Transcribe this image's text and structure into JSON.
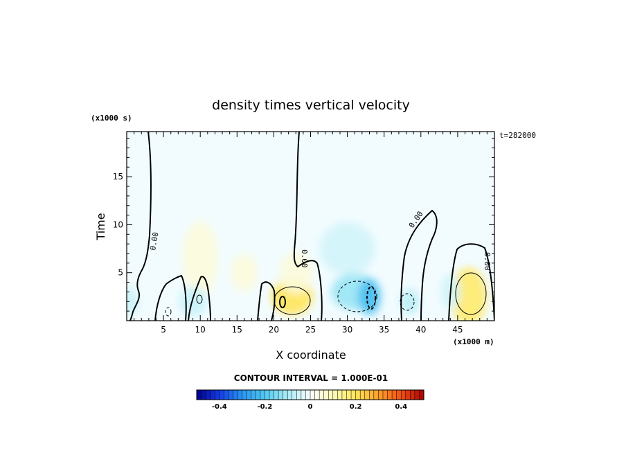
{
  "chart_data": {
    "type": "heatmap",
    "title": "density times vertical velocity",
    "xlabel": "X coordinate",
    "ylabel": "Time",
    "x_unit_label": "(x1000 m)",
    "y_unit_label": "(x1000 s)",
    "time_label": "t=282000",
    "contour_interval_label": "CONTOUR INTERVAL = 1.000E-01",
    "contour_label": "0.00",
    "xlim": [
      0,
      50
    ],
    "ylim": [
      0,
      19.7
    ],
    "x_ticks": [
      5,
      10,
      15,
      20,
      25,
      30,
      35,
      40,
      45
    ],
    "x_tick_labels": [
      "5",
      "10",
      "15",
      "20",
      "25",
      "30",
      "35",
      "40",
      "45"
    ],
    "y_ticks": [
      5,
      10,
      15
    ],
    "y_tick_labels": [
      "5",
      "10",
      "15"
    ],
    "colorbar": {
      "min": -0.5,
      "max": 0.5,
      "ticks": [
        -0.4,
        -0.2,
        0,
        0.2,
        0.4
      ],
      "tick_labels": [
        "-0.4",
        "-0.2",
        "0",
        "0.2",
        "0.4"
      ]
    },
    "features": [
      {
        "x": 10,
        "y": 6.5,
        "value": 0.05
      },
      {
        "x": 16,
        "y": 5,
        "value": 0.05
      },
      {
        "x": 22.5,
        "y": 2.5,
        "value": 0.2
      },
      {
        "x": 23,
        "y": 5,
        "value": 0.05
      },
      {
        "x": 31,
        "y": 3,
        "value": -0.12
      },
      {
        "x": 33,
        "y": 2.5,
        "value": -0.22
      },
      {
        "x": 30,
        "y": 7.5,
        "value": -0.05
      },
      {
        "x": 38.5,
        "y": 2,
        "value": -0.08
      },
      {
        "x": 9,
        "y": 2,
        "value": -0.06
      },
      {
        "x": 0.5,
        "y": 2,
        "value": -0.06
      },
      {
        "x": 46.5,
        "y": 2.5,
        "value": 0.18
      },
      {
        "x": 44,
        "y": 3,
        "value": -0.05
      }
    ]
  }
}
